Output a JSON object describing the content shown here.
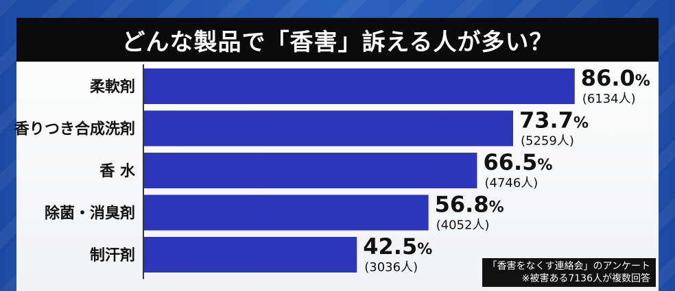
{
  "title": "どんな製品で「香害」訴える人が多い？",
  "chart_data": {
    "type": "bar",
    "orientation": "horizontal",
    "title": "どんな製品で「香害」訴える人が多い？",
    "categories": [
      "柔軟剤",
      "香りつき合成洗剤",
      "香 水",
      "除菌・消臭剤",
      "制汗剤"
    ],
    "values": [
      86.0,
      73.7,
      66.5,
      56.8,
      42.5
    ],
    "value_labels": [
      "86.0",
      "73.7",
      "66.5",
      "56.8",
      "42.5"
    ],
    "unit": "%",
    "counts": [
      "(6134人)",
      "(5259人)",
      "(4746人)",
      "(4052人)",
      "(3036人)"
    ],
    "xlim": [
      0,
      100
    ],
    "grid": false,
    "bar_color": "#2d36b8"
  },
  "footnote": {
    "line1": "「香害をなくす連絡会」のアンケート",
    "line2": "※被害ある7136人が複数回答"
  }
}
